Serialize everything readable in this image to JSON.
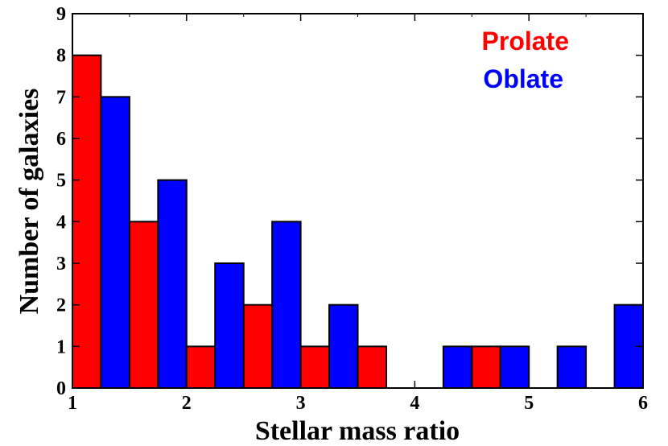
{
  "chart_data": {
    "type": "bar",
    "title": "",
    "xlabel": "Stellar mass ratio",
    "ylabel": "Number of galaxies",
    "xlim": [
      1,
      6
    ],
    "ylim": [
      0,
      9
    ],
    "xticks": [
      "1",
      "2",
      "3",
      "4",
      "5",
      "6"
    ],
    "yticks": [
      "0",
      "1",
      "2",
      "3",
      "4",
      "5",
      "6",
      "7",
      "8",
      "9"
    ],
    "grid": false,
    "legend_position": "top-right",
    "bin_edges": [
      1.0,
      1.5,
      2.0,
      2.5,
      3.0,
      3.5,
      4.0,
      4.5,
      5.0,
      5.5,
      6.0
    ],
    "series": [
      {
        "name": "Prolate",
        "color": "#ff0000",
        "values": [
          8,
          4,
          1,
          2,
          1,
          1,
          0,
          1,
          0,
          0
        ]
      },
      {
        "name": "Oblate",
        "color": "#0000ff",
        "values": [
          7,
          5,
          3,
          4,
          2,
          0,
          1,
          1,
          1,
          2
        ]
      }
    ]
  }
}
